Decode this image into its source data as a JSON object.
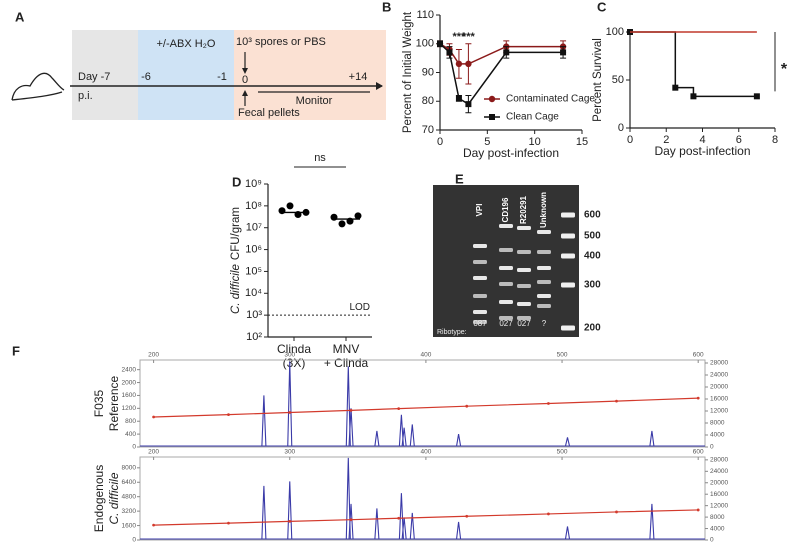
{
  "panel_labels": [
    "A",
    "B",
    "C",
    "D",
    "E",
    "F"
  ],
  "timeline": {
    "treatment": "+/-ABX H₂O",
    "inoculum": "10³ spores or PBS",
    "days": [
      "Day -7",
      "-6",
      "-1",
      "0",
      "+14"
    ],
    "pi": "p.i.",
    "monitor": "Monitor",
    "sampling": "Fecal pellets"
  },
  "gel": {
    "lanes": [
      "VPI",
      "CD196",
      "R20291",
      "Unknown"
    ],
    "ribotypes": [
      "087",
      "027",
      "027",
      "?"
    ],
    "ribotype_label": "Ribotype:",
    "ladder": [
      600,
      500,
      400,
      300,
      200
    ]
  },
  "chart_data": [
    {
      "type": "line",
      "x": [
        0,
        1,
        2,
        3,
        7,
        13
      ],
      "xlim": [
        0,
        15
      ],
      "xticks": [
        0,
        5,
        10,
        15
      ],
      "ylim": [
        70,
        110
      ],
      "yticks": [
        70,
        80,
        90,
        100,
        110
      ],
      "xlabel": "Day post-infection",
      "ylabel": "Percent of Initial Weight",
      "series": [
        {
          "name": "Contaminated Cage",
          "color": "#8b1a1a",
          "marker": "circle",
          "values": [
            100,
            98,
            93,
            93,
            99,
            99
          ],
          "errors": [
            1,
            2,
            5,
            7,
            2,
            2
          ]
        },
        {
          "name": "Clean Cage",
          "color": "#111111",
          "marker": "square",
          "values": [
            100,
            97,
            81,
            79,
            97,
            97
          ],
          "errors": [
            1,
            2,
            1,
            3,
            2,
            2
          ]
        }
      ],
      "annotations": [
        {
          "text": "***",
          "x": 2
        },
        {
          "text": "***",
          "x": 3
        }
      ]
    },
    {
      "type": "step",
      "x": [
        0,
        2.5,
        3.5,
        7
      ],
      "xlim": [
        0,
        8
      ],
      "xticks": [
        0,
        2,
        4,
        6,
        8
      ],
      "ylim": [
        0,
        100
      ],
      "yticks": [
        0,
        50,
        100
      ],
      "xlabel": "Day post-infection",
      "ylabel": "Percent Survival",
      "series": [
        {
          "color": "#111111",
          "marker": "square",
          "values": [
            100,
            42,
            33,
            33
          ]
        },
        {
          "color": "#c0392b",
          "values": [
            100,
            100,
            100,
            100
          ]
        }
      ],
      "annotation": "*"
    },
    {
      "type": "dot",
      "categories": [
        [
          "Clinda",
          "(3X)"
        ],
        [
          "MNV",
          "+ Clinda"
        ]
      ],
      "values": [
        [
          60000000,
          100000000,
          40000000,
          50000000
        ],
        [
          30000000,
          15000000,
          20000000,
          35000000
        ]
      ],
      "means": [
        50000000,
        25000000
      ],
      "color": "#000000",
      "log": true,
      "ylim": [
        100,
        1000000000
      ],
      "yticks": [
        {
          "value": 100,
          "label": "10²"
        },
        {
          "value": 1000,
          "label": "10³"
        },
        {
          "value": 10000,
          "label": "10⁴"
        },
        {
          "value": 100000,
          "label": "10⁵"
        },
        {
          "value": 1000000,
          "label": "10⁶"
        },
        {
          "value": 10000000,
          "label": "10⁷"
        },
        {
          "value": 100000000,
          "label": "10⁸"
        },
        {
          "value": 1000000000,
          "label": "10⁹"
        }
      ],
      "ylabel_italic": "C. difficile",
      "ylabel": "CFU/gram",
      "lod": {
        "value": 1000,
        "label": "LOD"
      },
      "significance": "ns"
    },
    {
      "type": "electropherogram",
      "xlim": [
        190,
        605
      ],
      "xticks": [
        200,
        300,
        400,
        500,
        600
      ],
      "ylim": [
        0,
        2700
      ],
      "yticks": [
        0,
        400,
        800,
        1200,
        1600,
        2000,
        2400
      ],
      "y2lim": [
        0,
        29000
      ],
      "y2ticks": [
        0,
        4000,
        8000,
        12000,
        16000,
        20000,
        24000,
        28000
      ],
      "ylabel": [
        "F035",
        "Reference"
      ],
      "ylabel_style": [
        "normal",
        "normal"
      ],
      "peaks": {
        "color": "#3a3aa8",
        "x": [
          281,
          300,
          343,
          345,
          364,
          382,
          384,
          390,
          424,
          504,
          566
        ],
        "values": [
          1600,
          2650,
          2500,
          1200,
          500,
          1000,
          600,
          700,
          400,
          300,
          500
        ]
      },
      "series": [
        {
          "axis": "y2",
          "color": "#d33a2c",
          "x": [
            200,
            255,
            300,
            345,
            380,
            430,
            490,
            540,
            600
          ],
          "values": [
            10000,
            10800,
            11500,
            12200,
            12800,
            13600,
            14500,
            15300,
            16300
          ]
        }
      ]
    },
    {
      "type": "electropherogram",
      "xlim": [
        190,
        605
      ],
      "xticks": [
        200,
        300,
        400,
        500,
        600
      ],
      "ylim": [
        0,
        9200
      ],
      "yticks": [
        0,
        1600,
        3200,
        4800,
        6400,
        8000
      ],
      "y2lim": [
        0,
        29000
      ],
      "y2ticks": [
        0,
        4000,
        8000,
        12000,
        16000,
        20000,
        24000,
        28000
      ],
      "ylabel": [
        "Endogenous",
        "C. difficile"
      ],
      "ylabel_style": [
        "normal",
        "italic"
      ],
      "peaks": {
        "color": "#3a3aa8",
        "x": [
          281,
          300,
          343,
          345,
          364,
          382,
          384,
          390,
          424,
          504,
          566
        ],
        "values": [
          6000,
          6500,
          9100,
          4000,
          3500,
          5200,
          2500,
          3000,
          2000,
          1500,
          4000
        ]
      },
      "series": [
        {
          "axis": "y2",
          "color": "#d33a2c",
          "x": [
            200,
            255,
            300,
            345,
            380,
            430,
            490,
            540,
            600
          ],
          "values": [
            5200,
            5900,
            6500,
            7100,
            7600,
            8300,
            9100,
            9800,
            10500
          ]
        }
      ]
    }
  ]
}
